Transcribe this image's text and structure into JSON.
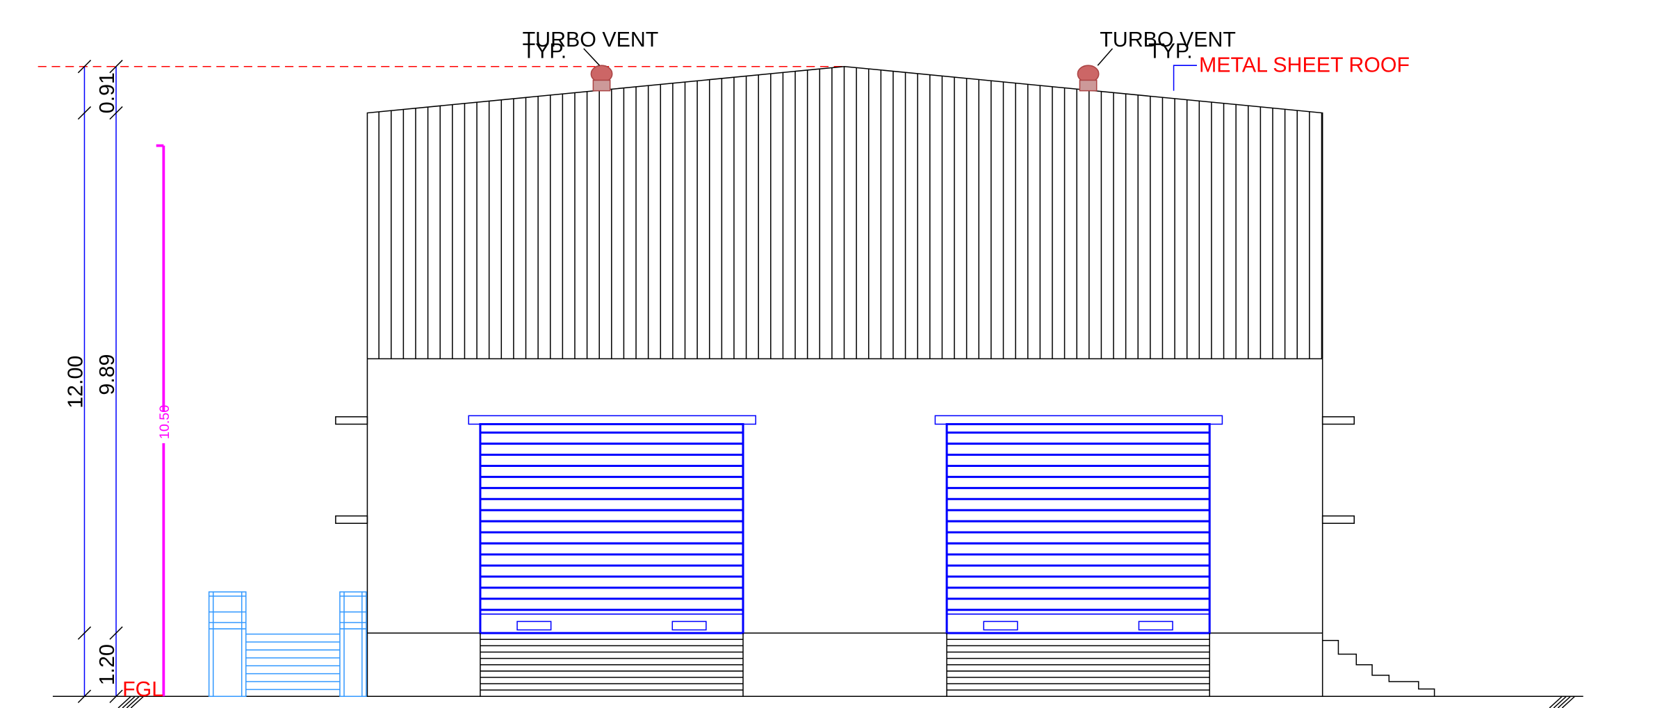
{
  "labels": {
    "vent_left": "TURBO VENT",
    "typ_left": "TYP.",
    "vent_right": "TURBO VENT",
    "typ_right": "TYP.",
    "roof": "METAL SHEET ROOF",
    "ground": "FGL"
  },
  "dimensions": {
    "total": "12.00",
    "roof_rise": "0.91",
    "wall": "9.89",
    "plinth": "1.20",
    "clear": "10.50"
  }
}
